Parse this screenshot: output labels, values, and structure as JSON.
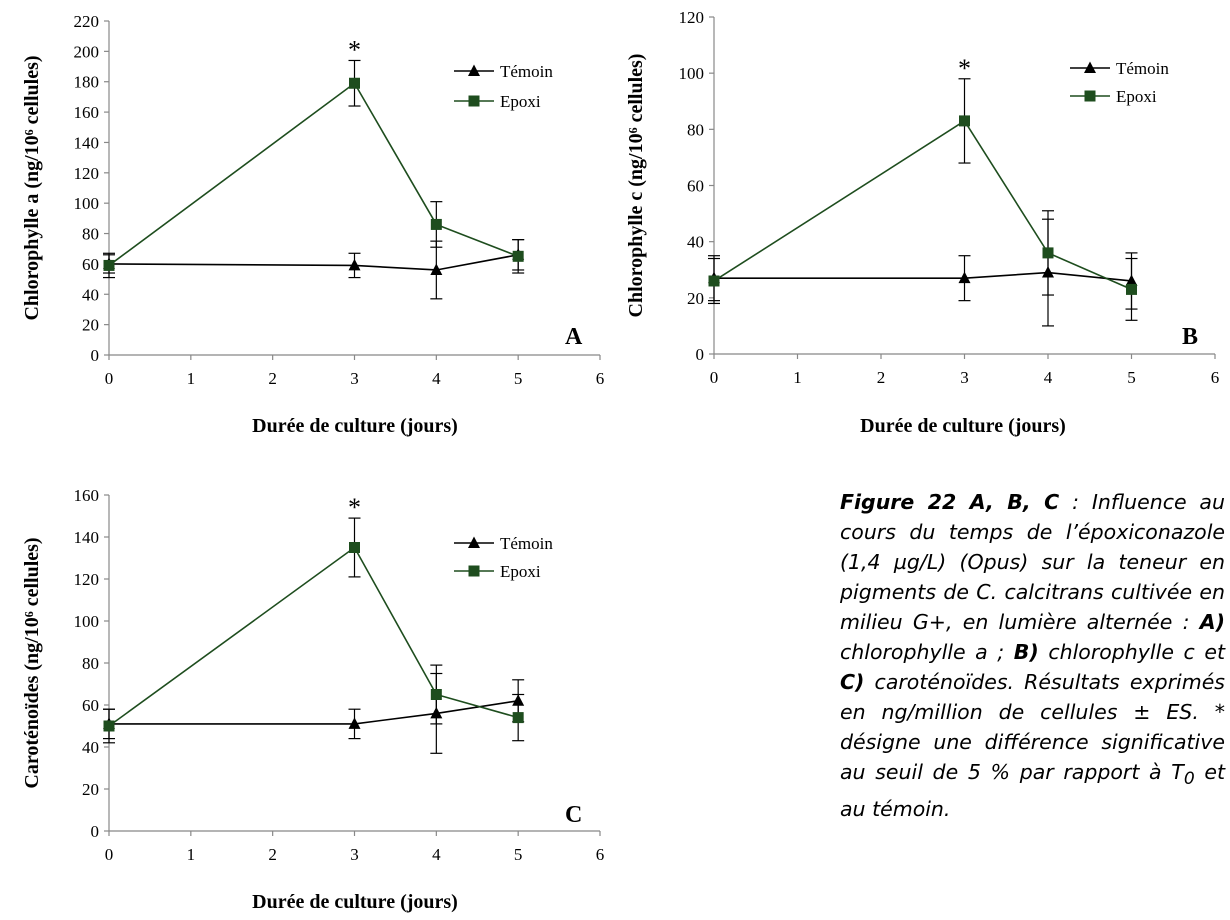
{
  "chart_data": [
    {
      "type": "line",
      "panel": "A",
      "ylabel": "Chlorophylle a (ng/10⁶ cellules)",
      "xlabel": "Durée de culture (jours)",
      "xlim": [
        0,
        6
      ],
      "ylim": [
        0,
        220
      ],
      "xticks": [
        "0",
        "1",
        "2",
        "3",
        "4",
        "5",
        "6"
      ],
      "yticks": [
        "0",
        "20",
        "40",
        "60",
        "80",
        "100",
        "120",
        "140",
        "160",
        "180",
        "200",
        "220"
      ],
      "legend_position": "top-right",
      "significance": [
        {
          "x": 3,
          "mark": "*"
        }
      ],
      "series": [
        {
          "name": "Témoin",
          "color": "#000000",
          "marker": "triangle",
          "x": [
            0,
            3,
            4,
            5
          ],
          "y": [
            60,
            59,
            56,
            66
          ],
          "err": [
            6,
            8,
            19,
            10
          ]
        },
        {
          "name": "Epoxi",
          "color": "#1e4d1e",
          "marker": "square",
          "x": [
            0,
            3,
            4,
            5
          ],
          "y": [
            59,
            179,
            86,
            65
          ],
          "err": [
            8,
            15,
            15,
            11
          ]
        }
      ]
    },
    {
      "type": "line",
      "panel": "B",
      "ylabel": "Chlorophylle c (ng/10⁶ cellules)",
      "xlabel": "Durée de culture (jours)",
      "xlim": [
        0,
        6
      ],
      "ylim": [
        0,
        120
      ],
      "xticks": [
        "0",
        "1",
        "2",
        "3",
        "4",
        "5",
        "6"
      ],
      "yticks": [
        "0",
        "20",
        "40",
        "60",
        "80",
        "100",
        "120"
      ],
      "legend_position": "top-right",
      "significance": [
        {
          "x": 3,
          "mark": "*"
        }
      ],
      "series": [
        {
          "name": "Témoin",
          "color": "#000000",
          "marker": "triangle",
          "x": [
            0,
            3,
            4,
            5
          ],
          "y": [
            27,
            27,
            29,
            26
          ],
          "err": [
            8,
            8,
            19,
            10
          ]
        },
        {
          "name": "Epoxi",
          "color": "#1e4d1e",
          "marker": "square",
          "x": [
            0,
            3,
            4,
            5
          ],
          "y": [
            26,
            83,
            36,
            23
          ],
          "err": [
            8,
            15,
            15,
            11
          ]
        }
      ]
    },
    {
      "type": "line",
      "panel": "C",
      "ylabel": "Caroténoïdes (ng/10⁶ cellules)",
      "xlabel": "Durée de culture (jours)",
      "xlim": [
        0,
        6
      ],
      "ylim": [
        0,
        160
      ],
      "xticks": [
        "0",
        "1",
        "2",
        "3",
        "4",
        "5",
        "6"
      ],
      "yticks": [
        "0",
        "20",
        "40",
        "60",
        "80",
        "100",
        "120",
        "140",
        "160"
      ],
      "legend_position": "top-right",
      "significance": [
        {
          "x": 3,
          "mark": "*"
        }
      ],
      "series": [
        {
          "name": "Témoin",
          "color": "#000000",
          "marker": "triangle",
          "x": [
            0,
            3,
            4,
            5
          ],
          "y": [
            51,
            51,
            56,
            62
          ],
          "err": [
            7,
            7,
            19,
            10
          ]
        },
        {
          "name": "Epoxi",
          "color": "#1e4d1e",
          "marker": "square",
          "x": [
            0,
            3,
            4,
            5
          ],
          "y": [
            50,
            135,
            65,
            54
          ],
          "err": [
            8,
            14,
            14,
            11
          ]
        }
      ]
    }
  ],
  "caption": {
    "lead": "Figure 22 A, B, C",
    "p1": " : Influence au cours du temps de l’époxiconazole (1,4 µg/L) (Opus) sur la  teneur en pigments de C. calcitrans cultivée en milieu G+, en lumière alternée : ",
    "a": "A)",
    "p2": " chlorophylle a ; ",
    "b": "B)",
    "p3": " chlorophylle c et ",
    "c": "C)",
    "p4": " caroténoïdes. Résultats exprimés en ng/million de cellules ± ES.  * désigne une différence significative au seuil de 5 % par rapport à T",
    "sub": "0",
    "p5": " et au témoin."
  }
}
